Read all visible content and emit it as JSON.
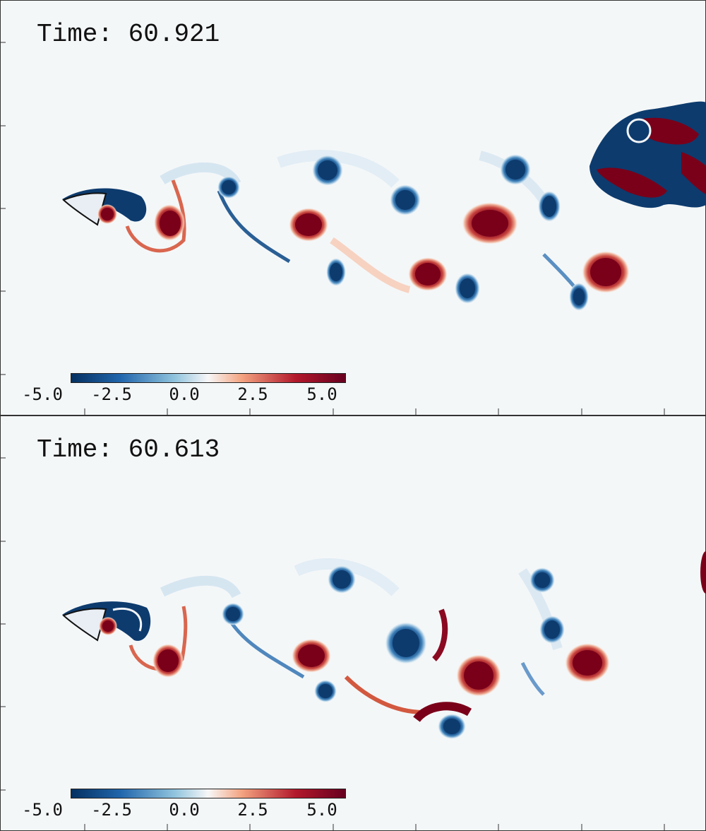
{
  "panels": [
    {
      "time_label": "Time:",
      "time_value": "60.921"
    },
    {
      "time_label": "Time:",
      "time_value": "60.613"
    }
  ],
  "colorbar": {
    "tick_labels": [
      "-5.0",
      "-2.5",
      "0.0",
      "2.5",
      "5.0"
    ],
    "min": -5.0,
    "max": 5.0,
    "colors": [
      "#053061",
      "#2166ac",
      "#92c5de",
      "#f7f7f7",
      "#f4a582",
      "#b2182b",
      "#67001f"
    ]
  },
  "colors": {
    "background": "#f4f7f8",
    "negative_core": "#0d3b6e",
    "positive_core": "#7a0019"
  }
}
